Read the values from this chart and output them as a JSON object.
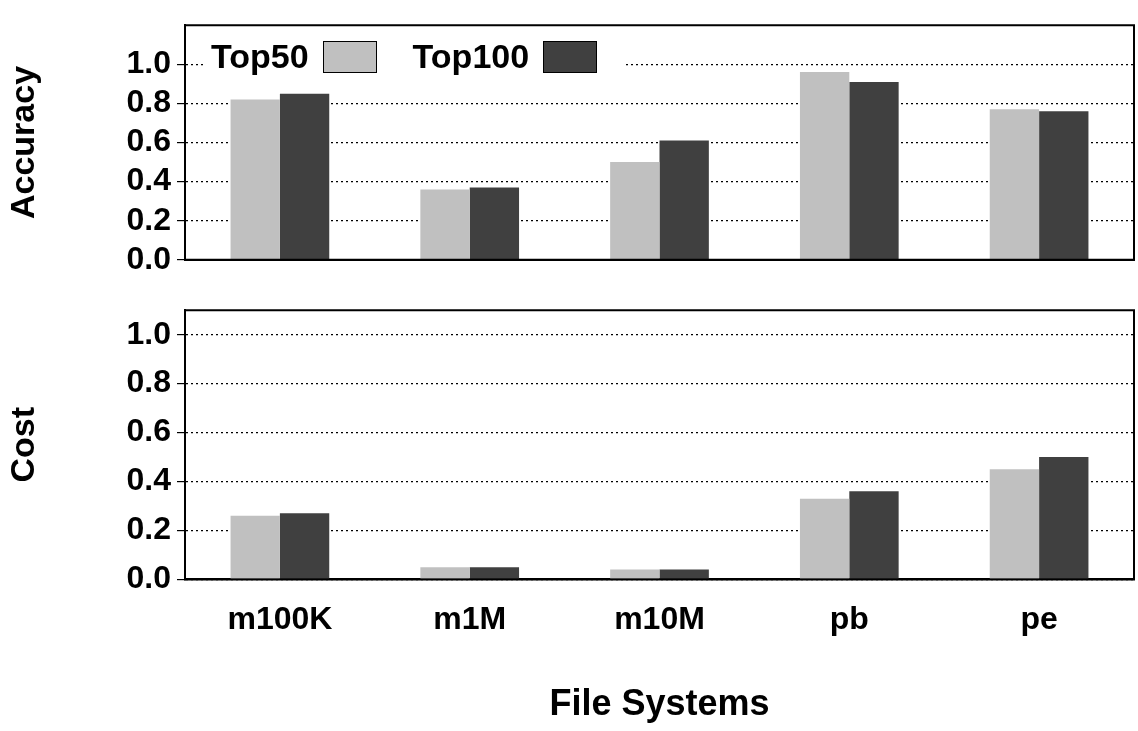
{
  "chart_data": [
    {
      "type": "bar",
      "ylabel": "Accuracy",
      "categories": [
        null,
        null,
        null,
        null,
        null
      ],
      "series": [
        {
          "name": "Top50",
          "color": "#c0c0c0",
          "values": [
            0.82,
            0.36,
            0.5,
            0.96,
            0.77
          ]
        },
        {
          "name": "Top100",
          "color": "#404040",
          "values": [
            0.85,
            0.37,
            0.61,
            0.91,
            0.76
          ]
        }
      ],
      "ylim": [
        0,
        1.2
      ],
      "yticks": [
        {
          "value": 0,
          "label": "0.0"
        },
        {
          "value": 0.2,
          "label": "0.2"
        },
        {
          "value": 0.4,
          "label": "0.4"
        },
        {
          "value": 0.6,
          "label": "0.6"
        },
        {
          "value": 0.8,
          "label": "0.8"
        },
        {
          "value": 1,
          "label": "1.0"
        }
      ],
      "grid": "y",
      "legend": "top left",
      "tick_labels": "y"
    },
    {
      "type": "bar",
      "ylabel": "Cost",
      "xlabel": "File Systems",
      "categories": [
        "m100K",
        "m1M",
        "m10M",
        "pb",
        "pe"
      ],
      "series": [
        {
          "color": "#c0c0c0",
          "values": [
            0.26,
            0.05,
            0.04,
            0.33,
            0.45
          ]
        },
        {
          "color": "#404040",
          "values": [
            0.27,
            0.05,
            0.04,
            0.36,
            0.5
          ]
        }
      ],
      "ylim": [
        0,
        1.1
      ],
      "yticks": [
        {
          "value": 0,
          "label": "0.0"
        },
        {
          "value": 0.2,
          "label": "0.2"
        },
        {
          "value": 0.4,
          "label": "0.4"
        },
        {
          "value": 0.6,
          "label": "0.6"
        },
        {
          "value": 0.8,
          "label": "0.8"
        },
        {
          "value": 1,
          "label": "1.0"
        }
      ],
      "grid": "y"
    }
  ]
}
